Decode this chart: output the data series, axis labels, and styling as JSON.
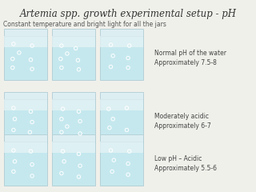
{
  "title_italic": "Artemia spp.",
  "title_normal": " growth experimental setup - pH",
  "subtitle": "Constant temperature and bright light for all the jars",
  "background_color": "#f0f0eb",
  "jar_fill_top": "#e8f4f6",
  "jar_fill_bottom": "#c5e8ee",
  "jar_edge_color": "#b0cdd4",
  "jar_rim_facecolor": "#ddeef2",
  "rows": [
    {
      "label": "Normal pH of the water\nApproximately 7.5-8",
      "dots_per_jar": [
        [
          [
            0.22,
            0.82
          ],
          [
            0.65,
            0.78
          ],
          [
            0.35,
            0.62
          ],
          [
            0.2,
            0.48
          ],
          [
            0.62,
            0.46
          ],
          [
            0.2,
            0.28
          ],
          [
            0.65,
            0.25
          ]
        ],
        [
          [
            0.22,
            0.78
          ],
          [
            0.55,
            0.72
          ],
          [
            0.35,
            0.6
          ],
          [
            0.2,
            0.48
          ],
          [
            0.6,
            0.45
          ],
          [
            0.22,
            0.28
          ],
          [
            0.62,
            0.24
          ]
        ],
        [
          [
            0.25,
            0.8
          ],
          [
            0.68,
            0.78
          ],
          [
            0.3,
            0.55
          ],
          [
            0.65,
            0.5
          ],
          [
            0.25,
            0.3
          ],
          [
            0.65,
            0.28
          ]
        ]
      ]
    },
    {
      "label": "Moderately acidic\nApproximately 6-7",
      "dots_per_jar": [
        [
          [
            0.22,
            0.8
          ],
          [
            0.62,
            0.72
          ],
          [
            0.25,
            0.55
          ],
          [
            0.65,
            0.48
          ],
          [
            0.22,
            0.3
          ],
          [
            0.6,
            0.25
          ]
        ],
        [
          [
            0.25,
            0.78
          ],
          [
            0.62,
            0.72
          ],
          [
            0.22,
            0.55
          ],
          [
            0.65,
            0.5
          ],
          [
            0.35,
            0.38
          ],
          [
            0.22,
            0.25
          ],
          [
            0.65,
            0.22
          ]
        ],
        [
          [
            0.2,
            0.78
          ],
          [
            0.62,
            0.8
          ],
          [
            0.3,
            0.55
          ],
          [
            0.22,
            0.35
          ],
          [
            0.62,
            0.3
          ]
        ]
      ]
    },
    {
      "label": "Low pH – Acidic\nApproximately 5.5-6",
      "dots_per_jar": [
        [
          [
            0.22,
            0.8
          ],
          [
            0.62,
            0.78
          ],
          [
            0.25,
            0.55
          ],
          [
            0.65,
            0.48
          ],
          [
            0.22,
            0.32
          ],
          [
            0.65,
            0.22
          ]
        ],
        [
          [
            0.25,
            0.78
          ],
          [
            0.62,
            0.72
          ],
          [
            0.28,
            0.55
          ],
          [
            0.65,
            0.45
          ],
          [
            0.22,
            0.28
          ],
          [
            0.62,
            0.2
          ]
        ],
        [
          [
            0.25,
            0.8
          ],
          [
            0.68,
            0.78
          ],
          [
            0.32,
            0.58
          ],
          [
            0.65,
            0.5
          ],
          [
            0.28,
            0.32
          ],
          [
            0.65,
            0.25
          ]
        ]
      ]
    }
  ],
  "title_fontsize": 8.5,
  "subtitle_fontsize": 5.5,
  "label_fontsize": 5.5
}
